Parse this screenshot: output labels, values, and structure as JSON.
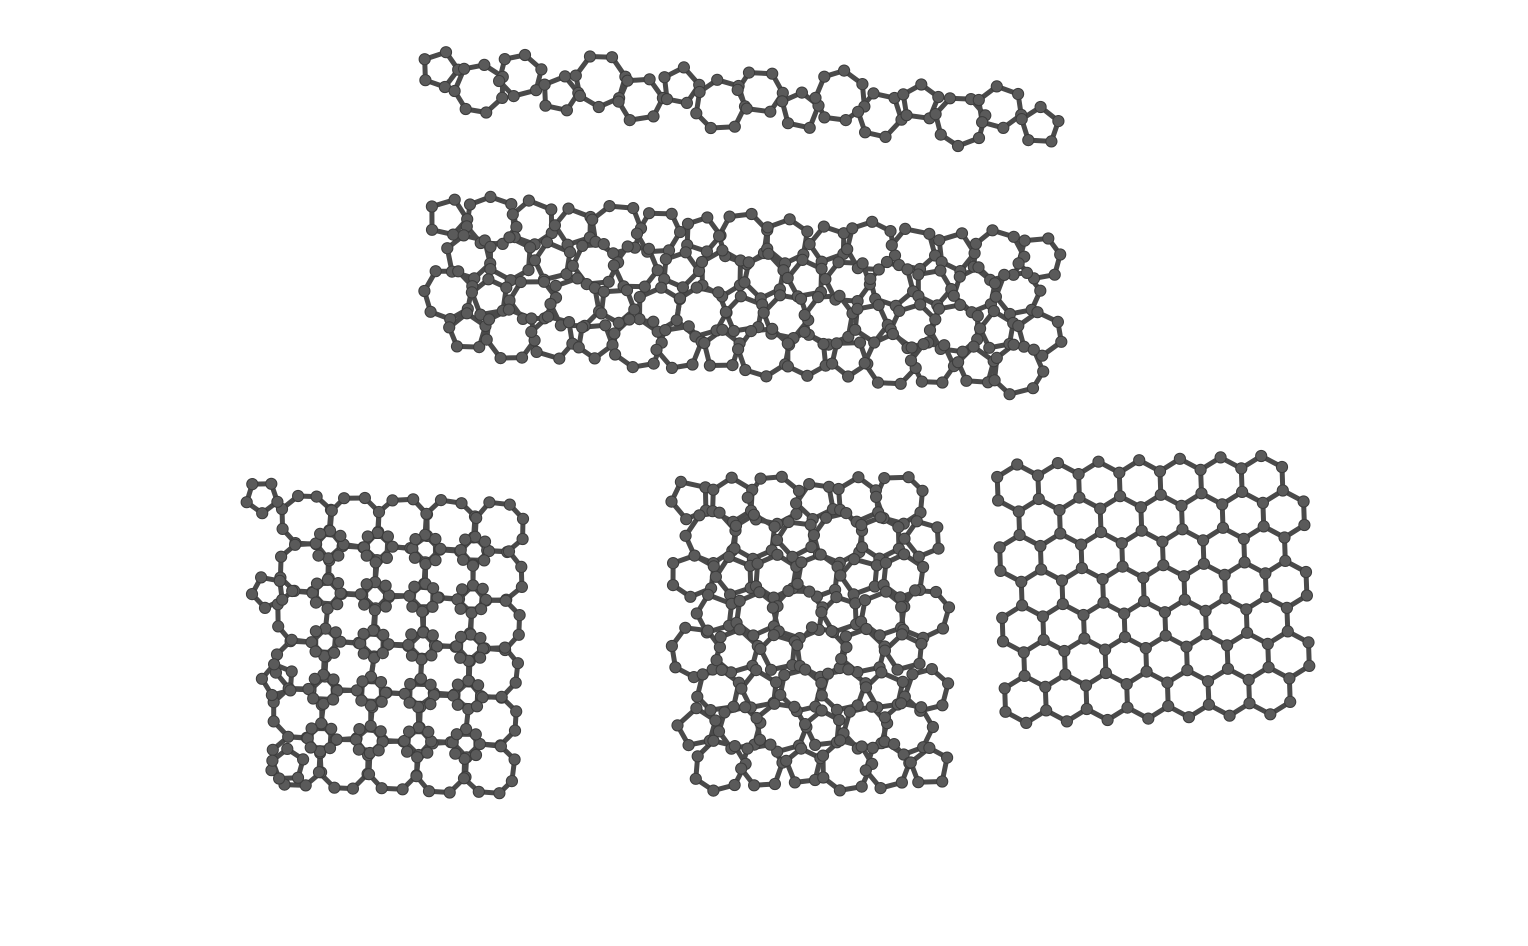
{
  "figure": {
    "panels": [
      {
        "id": "ribbon-narrow",
        "lattice": "pentagon-heptagon-hexagon",
        "atom_color": "#5a5a5a",
        "bond_color": "#4a4a4a"
      },
      {
        "id": "ribbon-wide",
        "lattice": "pentagon-heptagon",
        "atom_color": "#5a5a5a",
        "bond_color": "#4a4a4a"
      },
      {
        "id": "sheet-square-octagon",
        "lattice": "square-octagon",
        "atom_color": "#5a5a5a",
        "bond_color": "#4a4a4a"
      },
      {
        "id": "sheet-pentagon-heptagon",
        "lattice": "pentagon-heptagon",
        "atom_color": "#5a5a5a",
        "bond_color": "#4a4a4a"
      },
      {
        "id": "sheet-hexagonal",
        "lattice": "hexagon",
        "atom_color": "#5a5a5a",
        "bond_color": "#4a4a4a"
      }
    ]
  }
}
